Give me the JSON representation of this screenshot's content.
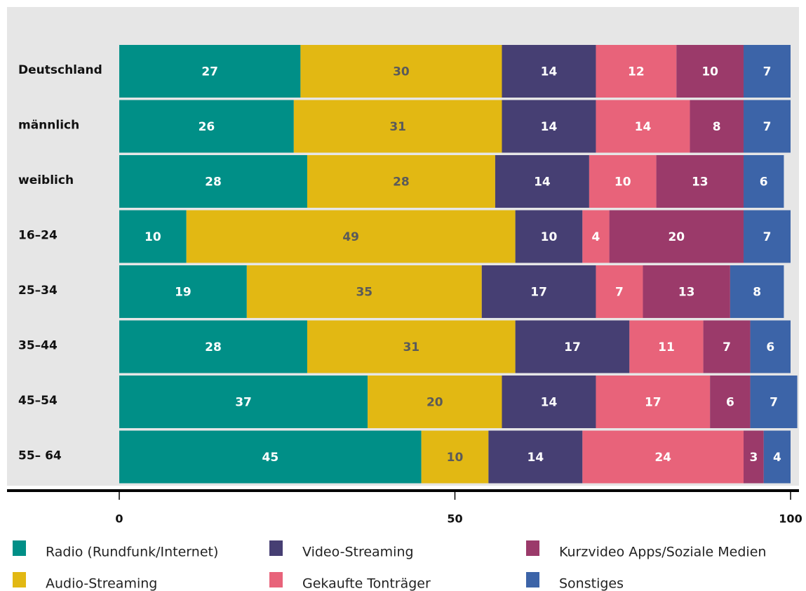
{
  "chart_data": {
    "type": "stacked-bar-horizontal",
    "categories": [
      "Deutschland",
      "männlich",
      "weiblich",
      "16–24",
      "25–34",
      "35–44",
      "45–54",
      "55– 64"
    ],
    "series": [
      {
        "name": "Radio (Rundfunk/Internet)",
        "color": "#008f87",
        "label_color": "#ffffff",
        "values": [
          27,
          26,
          28,
          10,
          19,
          28,
          37,
          45
        ]
      },
      {
        "name": "Audio-Streaming",
        "color": "#e2b813",
        "label_color": "#5a5a5a",
        "values": [
          30,
          31,
          28,
          49,
          35,
          31,
          20,
          10
        ]
      },
      {
        "name": "Video-Streaming",
        "color": "#463f73",
        "label_color": "#ffffff",
        "values": [
          14,
          14,
          14,
          10,
          17,
          17,
          14,
          14
        ]
      },
      {
        "name": "Gekaufte Tonträger",
        "color": "#e8637a",
        "label_color": "#ffffff",
        "values": [
          12,
          14,
          10,
          4,
          7,
          11,
          17,
          24
        ]
      },
      {
        "name": "Kurzvideo Apps/Soziale Medien",
        "color": "#9b3a6a",
        "label_color": "#ffffff",
        "values": [
          10,
          8,
          13,
          20,
          13,
          7,
          6,
          3
        ]
      },
      {
        "name": "Sonstiges",
        "color": "#3c64a8",
        "label_color": "#ffffff",
        "values": [
          7,
          7,
          6,
          7,
          8,
          6,
          7,
          4
        ]
      }
    ],
    "xlim": [
      0,
      100
    ],
    "xticks": [
      0,
      50,
      100
    ],
    "grid": false
  }
}
